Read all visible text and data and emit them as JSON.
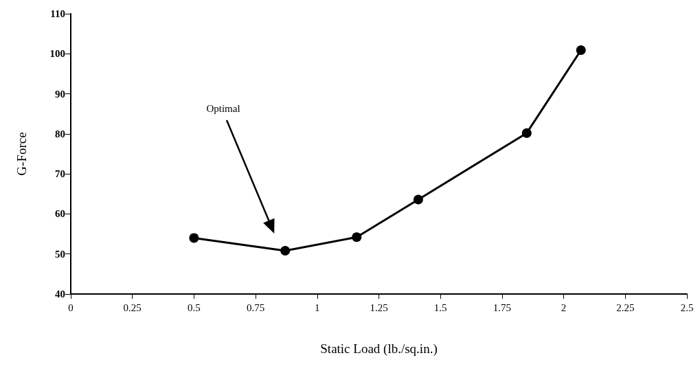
{
  "chart_data": {
    "type": "line",
    "xlabel": "Static Load (lb./sq.in.)",
    "ylabel": "G-Force",
    "x": [
      0.5,
      0.87,
      1.16,
      1.41,
      1.85,
      2.07
    ],
    "series": [
      {
        "color": "#000000",
        "values": [
          54.0,
          50.8,
          54.2,
          63.6,
          80.2,
          100.9
        ]
      }
    ],
    "xlim": [
      0,
      2.5
    ],
    "xticks": [
      0,
      0.25,
      0.5,
      0.75,
      1,
      1.25,
      1.5,
      1.75,
      2,
      2.25,
      2.5
    ],
    "ylim": [
      40,
      110
    ],
    "yticks": [
      40,
      50,
      60,
      70,
      80,
      90,
      100,
      110
    ],
    "grid": false,
    "marker": "circle",
    "line_style": "solid",
    "annotations": [
      "Optimal"
    ]
  }
}
